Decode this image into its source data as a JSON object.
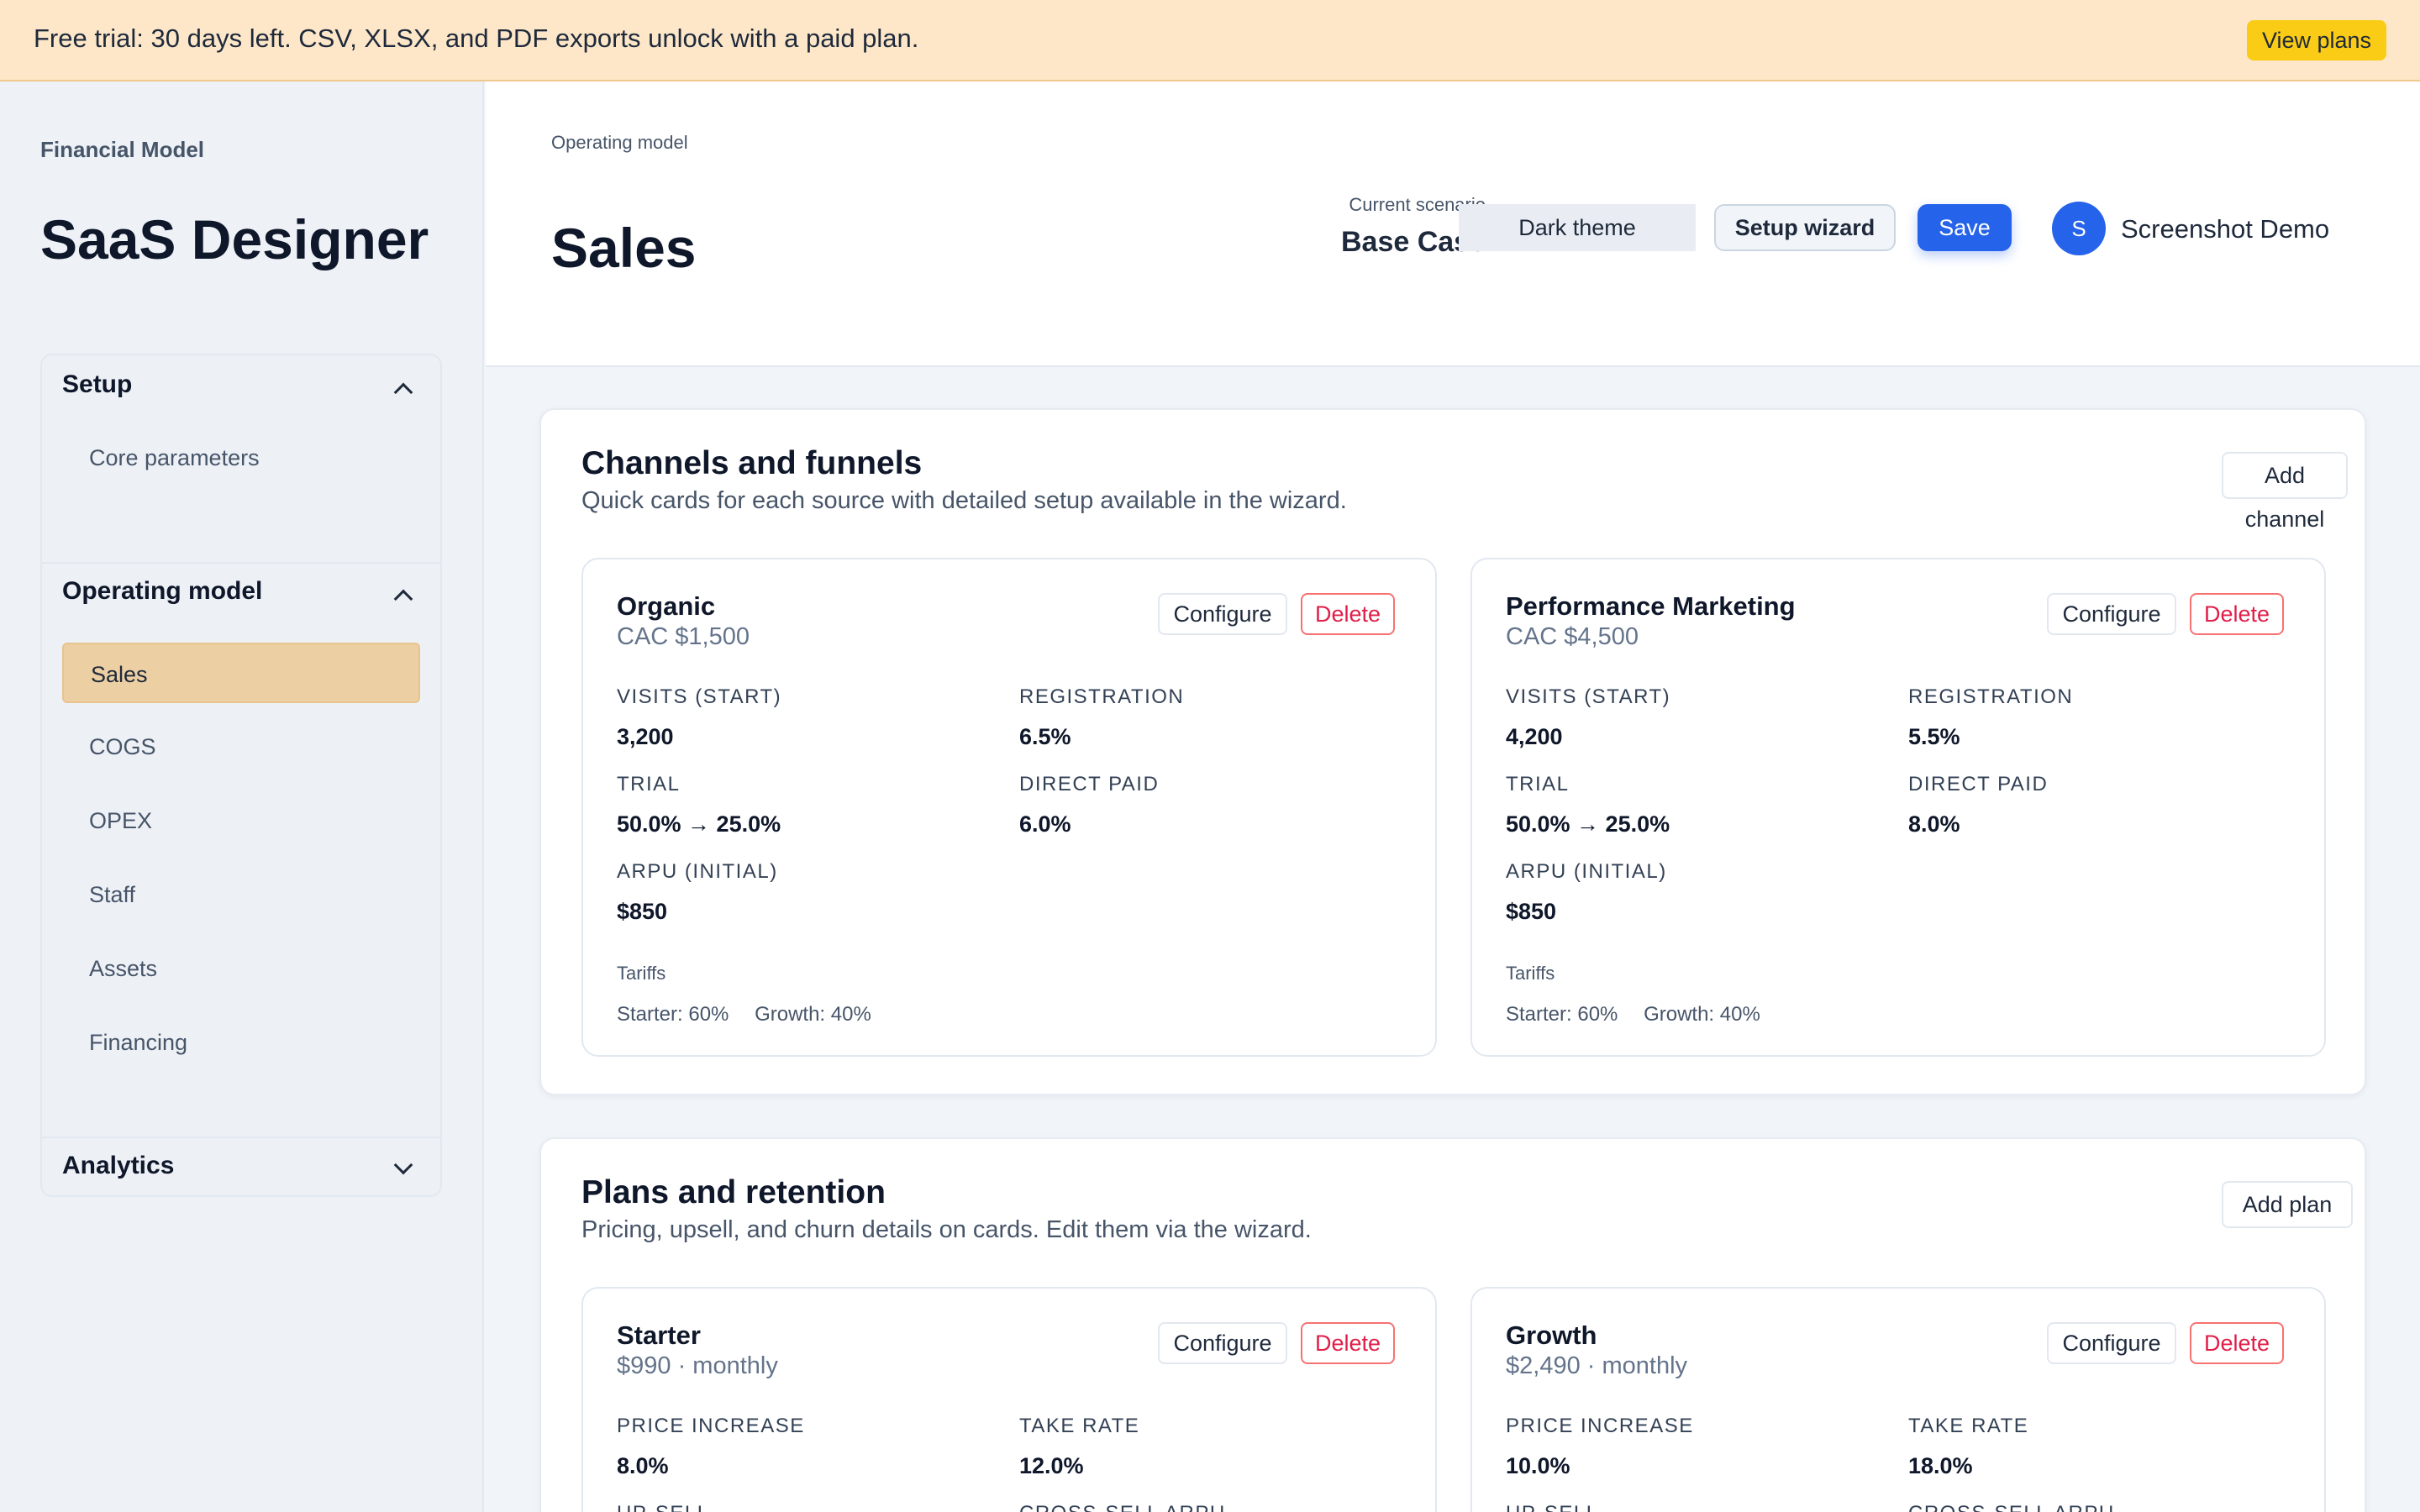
{
  "banner": {
    "text": "Free trial: 30 days left. CSV, XLSX, and PDF exports unlock with a paid plan.",
    "button": "View plans"
  },
  "sidebar": {
    "brand_sub": "Financial Model",
    "brand_title": "SaaS Designer",
    "sections": [
      {
        "label": "Setup",
        "expanded": true,
        "items": [
          "Core parameters"
        ]
      },
      {
        "label": "Operating model",
        "expanded": true,
        "items": [
          "Sales",
          "COGS",
          "OPEX",
          "Staff",
          "Assets",
          "Financing"
        ],
        "active": "Sales"
      },
      {
        "label": "Analytics",
        "expanded": false,
        "items": []
      }
    ]
  },
  "header": {
    "breadcrumb": "Operating model",
    "title": "Sales",
    "scenario_label": "Current scenario",
    "scenario_value": "Base Case",
    "theme_button": "Dark theme",
    "wizard_button": "Setup wizard",
    "save_button": "Save",
    "avatar_initial": "S",
    "user_name": "Screenshot Demo"
  },
  "channels": {
    "title": "Channels and funnels",
    "subtitle": "Quick cards for each source with detailed setup available in the wizard.",
    "add_button": "Add channel",
    "cards": [
      {
        "name": "Organic",
        "cac": "CAC $1,500",
        "configure": "Configure",
        "delete": "Delete",
        "metrics": [
          {
            "label": "VISITS (START)",
            "value": "3,200"
          },
          {
            "label": "REGISTRATION",
            "value": "6.5%"
          },
          {
            "label": "TRIAL",
            "value": "50.0% → 25.0%"
          },
          {
            "label": "DIRECT PAID",
            "value": "6.0%"
          },
          {
            "label": "ARPU (INITIAL)",
            "value": "$850"
          }
        ],
        "tariffs_label": "Tariffs",
        "tariffs": [
          "Starter: 60%",
          "Growth: 40%"
        ]
      },
      {
        "name": "Performance Marketing",
        "cac": "CAC $4,500",
        "configure": "Configure",
        "delete": "Delete",
        "metrics": [
          {
            "label": "VISITS (START)",
            "value": "4,200"
          },
          {
            "label": "REGISTRATION",
            "value": "5.5%"
          },
          {
            "label": "TRIAL",
            "value": "50.0% → 25.0%"
          },
          {
            "label": "DIRECT PAID",
            "value": "8.0%"
          },
          {
            "label": "ARPU (INITIAL)",
            "value": "$850"
          }
        ],
        "tariffs_label": "Tariffs",
        "tariffs": [
          "Starter: 60%",
          "Growth: 40%"
        ]
      }
    ]
  },
  "plans": {
    "title": "Plans and retention",
    "subtitle": "Pricing, upsell, and churn details on cards. Edit them via the wizard.",
    "add_button": "Add plan",
    "cards": [
      {
        "name": "Starter",
        "price": "$990 · monthly",
        "configure": "Configure",
        "delete": "Delete",
        "metrics": [
          {
            "label": "PRICE INCREASE",
            "value": "8.0%"
          },
          {
            "label": "TAKE RATE",
            "value": "12.0%"
          },
          {
            "label": "UP-SELL",
            "value": ""
          },
          {
            "label": "CROSS-SELL ARPU",
            "value": ""
          }
        ]
      },
      {
        "name": "Growth",
        "price": "$2,490 · monthly",
        "configure": "Configure",
        "delete": "Delete",
        "metrics": [
          {
            "label": "PRICE INCREASE",
            "value": "10.0%"
          },
          {
            "label": "TAKE RATE",
            "value": "18.0%"
          },
          {
            "label": "UP-SELL",
            "value": ""
          },
          {
            "label": "CROSS-SELL ARPU",
            "value": ""
          }
        ]
      }
    ]
  }
}
